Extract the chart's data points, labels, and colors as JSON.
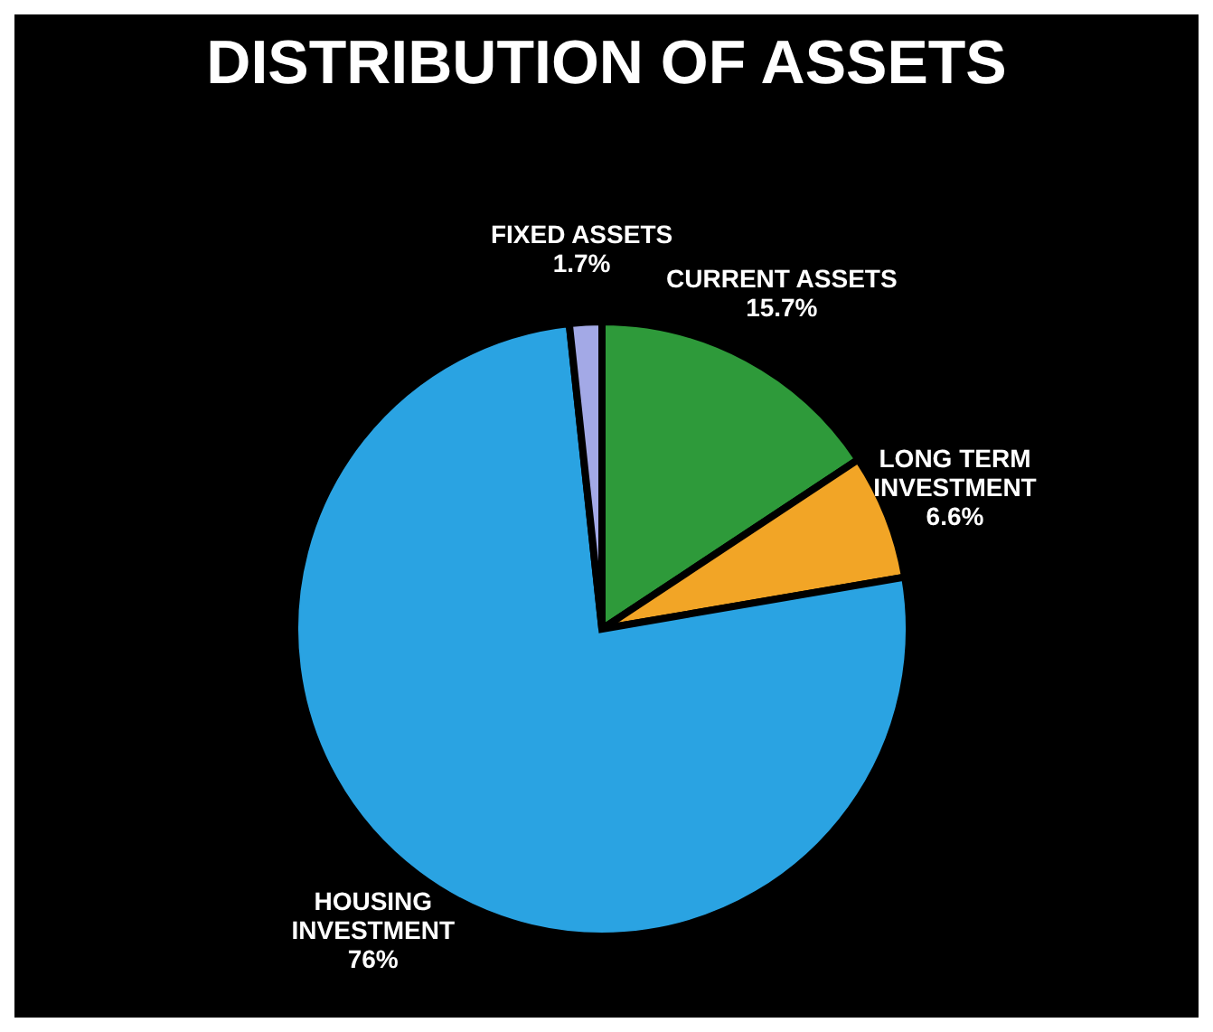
{
  "chart_data": {
    "type": "pie",
    "title": "DISTRIBUTION OF ASSETS",
    "categories": [
      "CURRENT ASSETS",
      "LONG TERM INVESTMENT",
      "HOUSING INVESTMENT",
      "FIXED ASSETS"
    ],
    "values": [
      15.7,
      6.6,
      76,
      1.7
    ],
    "value_labels": [
      "15.7%",
      "6.6%",
      "76%",
      "1.7%"
    ],
    "colors": [
      "#2e9a3a",
      "#f2a526",
      "#2aa3e2",
      "#a3a9e6"
    ],
    "legend": false
  }
}
